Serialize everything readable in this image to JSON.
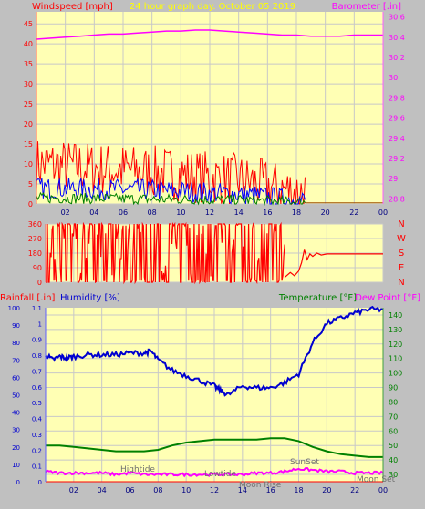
{
  "title": "24 hour graph day.  October 05 2019",
  "colors": {
    "background": "#c0c0c0",
    "plot_fill": "#ffffb4",
    "grid": "#c8c8c8",
    "axis_left": "#ff0000",
    "axis_right_top": "#ff00ff",
    "title": "#ffff00",
    "wind_red": "#ff0000",
    "wind_blue": "#0000ff",
    "wind_green": "#008000",
    "dir_red": "#ff0000",
    "baro": "#ff00ff",
    "humidity": "#0000d0",
    "temperature": "#008000",
    "dewpoint": "#ff00ff",
    "rain": "#ff0000",
    "annotation": "#707070"
  },
  "x_ticks": [
    "02",
    "04",
    "06",
    "08",
    "10",
    "12",
    "14",
    "16",
    "18",
    "20",
    "22",
    "00"
  ],
  "chart_data": [
    {
      "type": "line",
      "name": "wind-barometer",
      "left_axis": {
        "label": "Windspeed [mph]",
        "ticks": [
          "0",
          "5",
          "10",
          "15",
          "20",
          "25",
          "30",
          "35",
          "40",
          "45"
        ],
        "ylim": [
          0,
          48
        ]
      },
      "right_axis": {
        "label": "Barometer [.in]",
        "ticks": [
          "28.8",
          "29",
          "29.2",
          "29.4",
          "29.6",
          "29.8",
          "30",
          "30.2",
          "30.4",
          "30.6"
        ],
        "ylim": [
          28.75,
          30.65
        ]
      },
      "xlim": [
        0,
        24
      ],
      "series": [
        {
          "key": "barometer",
          "axis": "right",
          "x": [
            0,
            1,
            2,
            3,
            4,
            5,
            6,
            7,
            8,
            9,
            10,
            11,
            12,
            13,
            14,
            15,
            16,
            17,
            18,
            19,
            20,
            21,
            22,
            23,
            24
          ],
          "y": [
            30.38,
            30.39,
            30.4,
            30.41,
            30.42,
            30.43,
            30.43,
            30.44,
            30.45,
            30.46,
            30.46,
            30.47,
            30.47,
            30.46,
            30.45,
            30.44,
            30.43,
            30.42,
            30.42,
            30.41,
            30.41,
            30.41,
            30.42,
            30.42,
            30.42
          ]
        },
        {
          "key": "wind_gust",
          "axis": "left",
          "points": 200,
          "x_range": [
            0,
            18.6
          ],
          "y_band": [
            3,
            18
          ],
          "trend": [
            [
              0,
              10
            ],
            [
              8,
              8
            ],
            [
              14,
              6
            ],
            [
              18,
              3
            ]
          ]
        },
        {
          "key": "wind_avg",
          "axis": "left",
          "points": 200,
          "x_range": [
            0,
            18.6
          ],
          "y_band": [
            1,
            7
          ],
          "trend": [
            [
              0,
              4
            ],
            [
              8,
              3.5
            ],
            [
              14,
              2.5
            ],
            [
              18,
              1
            ]
          ]
        },
        {
          "key": "wind_low",
          "axis": "left",
          "points": 200,
          "x_range": [
            0,
            18.6
          ],
          "y_band": [
            0,
            3
          ],
          "trend": [
            [
              0,
              1.5
            ],
            [
              8,
              1.2
            ],
            [
              14,
              1
            ],
            [
              18,
              0.5
            ]
          ]
        },
        {
          "key": "wind_calm",
          "axis": "left",
          "x": [
            18.6,
            24
          ],
          "y": [
            0.3,
            0.3
          ]
        }
      ]
    },
    {
      "type": "line",
      "name": "wind-direction",
      "left_axis": {
        "ticks": [
          "0",
          "90",
          "180",
          "270",
          "360"
        ],
        "ylim": [
          0,
          360
        ]
      },
      "right_axis": {
        "ticks": [
          "N",
          "E",
          "S",
          "W",
          "N"
        ]
      },
      "xlim": [
        0,
        24
      ],
      "series": [
        {
          "key": "direction_noisy",
          "points": 260,
          "x_range": [
            0,
            17
          ],
          "y_band": [
            0,
            360
          ]
        },
        {
          "key": "direction_settle",
          "x": [
            17,
            17.4,
            17.7,
            18,
            18.2,
            18.4,
            18.6,
            18.8,
            19,
            19.3,
            19.6,
            20,
            24
          ],
          "y": [
            30,
            60,
            40,
            70,
            120,
            200,
            140,
            175,
            160,
            180,
            168,
            175,
            175
          ]
        }
      ]
    },
    {
      "type": "line",
      "name": "humidity-temperature",
      "left_axis_rain": {
        "label": "Rainfall [.in]",
        "ticks": [
          "0",
          "0.1",
          "0.2",
          "0.3",
          "0.4",
          "0.5",
          "0.6",
          "0.7",
          "0.8",
          "0.9",
          "1",
          "1.1"
        ],
        "ylim": [
          0,
          1.1
        ]
      },
      "left_axis_humidity": {
        "label": "Humidity [%]",
        "ticks": [
          "0",
          "10",
          "20",
          "30",
          "40",
          "50",
          "60",
          "70",
          "80",
          "90",
          "100"
        ],
        "ylim": [
          0,
          100
        ]
      },
      "right_axis": {
        "label_temp": "Temperature [°F]",
        "label_dew": "Dew Point [°F]",
        "ticks": [
          "30",
          "40",
          "50",
          "60",
          "70",
          "80",
          "90",
          "100",
          "110",
          "120",
          "130",
          "140"
        ],
        "ylim": [
          25,
          145
        ]
      },
      "xlim": [
        0,
        24
      ],
      "series": [
        {
          "key": "humidity",
          "axis": "humidity",
          "x": [
            0,
            0.5,
            1,
            1.5,
            2,
            3,
            4,
            5,
            6,
            7,
            7.5,
            8,
            9,
            10,
            11,
            12,
            12.5,
            13,
            14,
            15,
            16,
            17,
            18,
            19,
            20,
            21,
            22,
            23,
            24
          ],
          "y": [
            73,
            70,
            72,
            71,
            72,
            73,
            73,
            73,
            74,
            74,
            75,
            70,
            64,
            61,
            58,
            55,
            52,
            50,
            55,
            54,
            54,
            57,
            62,
            80,
            91,
            94,
            97,
            99,
            99
          ]
        },
        {
          "key": "temperature",
          "axis": "temp",
          "x": [
            0,
            1,
            2,
            3,
            4,
            5,
            6,
            7,
            8,
            9,
            10,
            11,
            12,
            13,
            14,
            15,
            16,
            17,
            18,
            19,
            20,
            21,
            22,
            23,
            24
          ],
          "y": [
            50,
            50,
            49,
            48,
            47,
            46,
            46,
            46,
            47,
            50,
            52,
            53,
            54,
            54,
            54,
            54,
            55,
            55,
            53,
            49,
            46,
            44,
            43,
            42,
            42
          ]
        },
        {
          "key": "dewpoint",
          "axis": "temp",
          "x": [
            0,
            1,
            2,
            3,
            4,
            5,
            6,
            7,
            8,
            9,
            10,
            11,
            12,
            13,
            14,
            15,
            16,
            17,
            18,
            19,
            20,
            21,
            22,
            23,
            24
          ],
          "y": [
            32,
            31,
            31,
            31,
            31,
            30,
            31,
            30,
            30,
            30,
            30,
            30,
            30,
            30,
            30,
            31,
            31,
            32,
            34,
            33,
            32,
            32,
            31,
            31,
            31
          ]
        },
        {
          "key": "rain",
          "axis": "rain",
          "x": [
            0,
            24
          ],
          "y": [
            0,
            0
          ]
        }
      ],
      "annotations": [
        "Hightide",
        "Lowtide",
        "SunSet",
        "Moon Rise",
        "Moon Set"
      ]
    }
  ]
}
